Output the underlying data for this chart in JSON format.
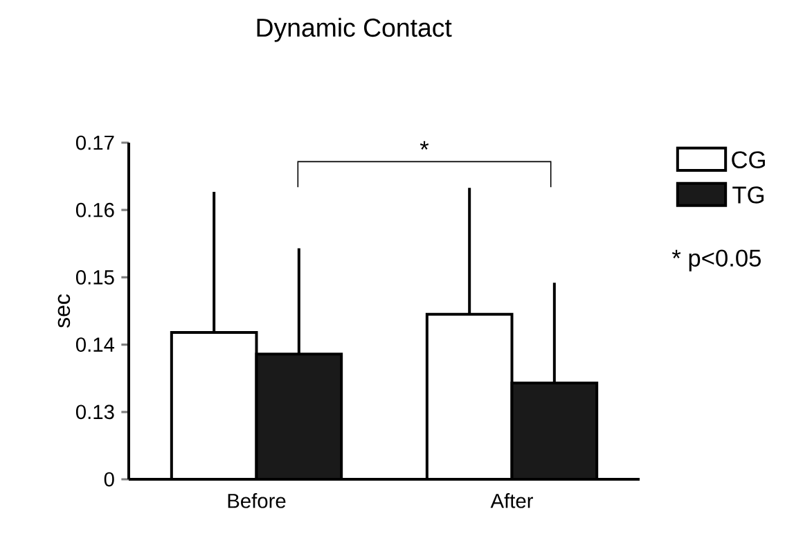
{
  "chart_data": {
    "type": "bar",
    "title": "Dynamic Contact",
    "ylabel": "sec",
    "categories": [
      "Before",
      "After"
    ],
    "series": [
      {
        "name": "CG",
        "color": "#ffffff",
        "values": [
          0.1418,
          0.1445
        ],
        "errors": [
          [
            0.1418,
            0.1627
          ],
          [
            0.1445,
            0.1633
          ]
        ]
      },
      {
        "name": "TG",
        "color": "#1a1a1a",
        "values": [
          0.1386,
          0.1343
        ],
        "errors": [
          [
            0.1386,
            0.1543
          ],
          [
            0.1343,
            0.1492
          ]
        ]
      }
    ],
    "ylim": [
      0.12,
      0.17
    ],
    "yticks": [
      {
        "value": 0.12,
        "label": "0"
      },
      0.13,
      0.14,
      0.15,
      0.16,
      0.17
    ],
    "legend": "top right",
    "grid": false,
    "annotations": [
      "*",
      "* p<0.05"
    ]
  }
}
